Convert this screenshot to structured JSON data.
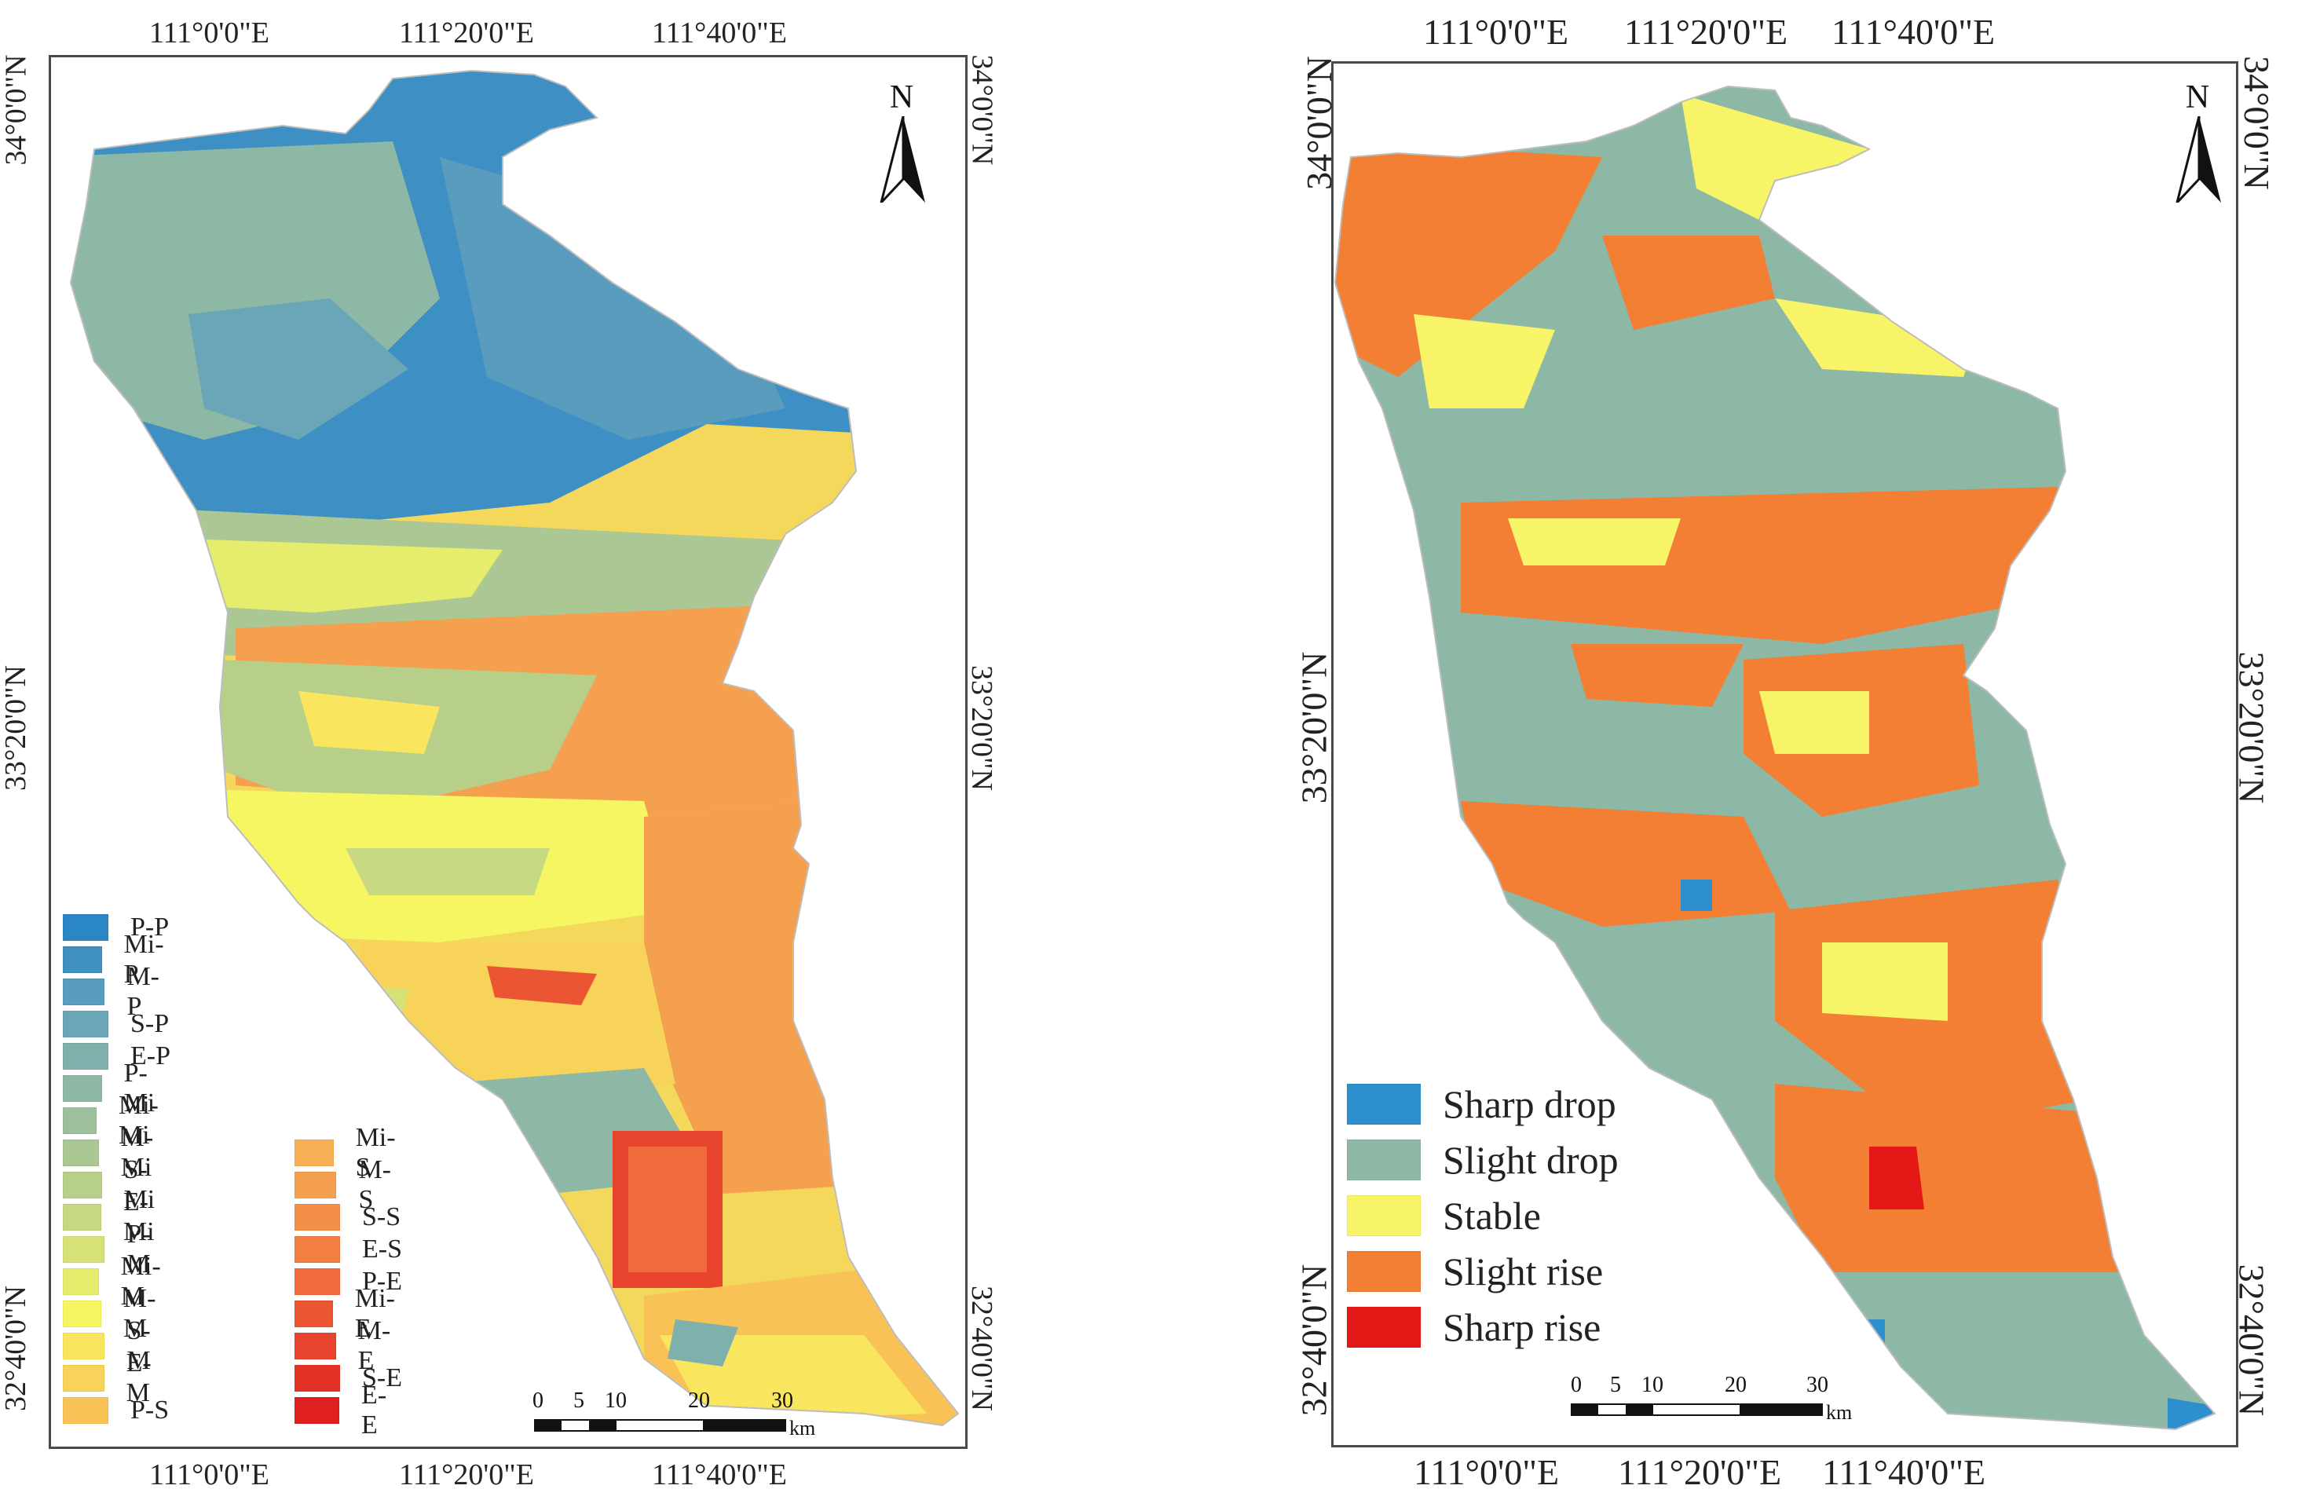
{
  "left_map": {
    "top_ticks": [
      "111°0'0\"E",
      "111°20'0\"E",
      "111°40'0\"E"
    ],
    "bottom_ticks": [
      "111°0'0\"E",
      "111°20'0\"E",
      "111°40'0\"E"
    ],
    "left_ticks": [
      "34°0'0\"N",
      "33°20'0\"N",
      "32°40'0\"N"
    ],
    "right_ticks": [
      "34°0'0\"N",
      "33°20'0\"N",
      "32°40'0\"N"
    ],
    "north_label": "N",
    "scale_numbers": [
      "0",
      "5",
      "10",
      "20",
      "30"
    ],
    "scale_unit": "km",
    "legend_col1": [
      {
        "label": "P-P",
        "color": "#2b86c5"
      },
      {
        "label": "Mi-P",
        "color": "#3f8fc0"
      },
      {
        "label": "M-P",
        "color": "#5a9cbd"
      },
      {
        "label": "S-P",
        "color": "#6aa5b8"
      },
      {
        "label": "E-P",
        "color": "#7fb0ab"
      },
      {
        "label": "P-Mi",
        "color": "#8eb8a6"
      },
      {
        "label": "Mi-Mi",
        "color": "#9dbf9c"
      },
      {
        "label": "M-Mi",
        "color": "#aac794"
      },
      {
        "label": "S-Mi",
        "color": "#b8cf8a"
      },
      {
        "label": "E-Mi",
        "color": "#c6d881"
      },
      {
        "label": "P-M",
        "color": "#d6e277"
      },
      {
        "label": "Mi-M",
        "color": "#e6ec6c"
      },
      {
        "label": "M-M",
        "color": "#f6f662"
      },
      {
        "label": "S-M",
        "color": "#f9e65e"
      },
      {
        "label": "E-M",
        "color": "#f8d35a"
      },
      {
        "label": "P-S",
        "color": "#f8c257"
      }
    ],
    "legend_col2": [
      {
        "label": "Mi-S",
        "color": "#f6b053"
      },
      {
        "label": "M-S",
        "color": "#f5a04e"
      },
      {
        "label": "S-S",
        "color": "#f48f48"
      },
      {
        "label": "E-S",
        "color": "#f27e42"
      },
      {
        "label": "P-E",
        "color": "#f06a3b"
      },
      {
        "label": "Mi-E",
        "color": "#ec5533"
      },
      {
        "label": "M-E",
        "color": "#e8432c"
      },
      {
        "label": "S-E",
        "color": "#e43126"
      },
      {
        "label": "E-E",
        "color": "#e01f1f"
      }
    ]
  },
  "right_map": {
    "top_ticks": [
      "111°0'0\"E",
      "111°20'0\"E",
      "111°40'0\"E"
    ],
    "bottom_ticks": [
      "111°0'0\"E",
      "111°20'0\"E",
      "111°40'0\"E"
    ],
    "left_ticks": [
      "34°0'0\"N",
      "33°20'0\"N",
      "32°40'0\"N"
    ],
    "right_ticks": [
      "34°0'0\"N",
      "33°20'0\"N",
      "32°40'0\"N"
    ],
    "north_label": "N",
    "scale_numbers": [
      "0",
      "5",
      "10",
      "20",
      "30"
    ],
    "scale_unit": "km",
    "legend": [
      {
        "label": "Sharp drop",
        "color": "#2e8fcf"
      },
      {
        "label": "Slight drop",
        "color": "#8db8a5"
      },
      {
        "label": "Stable",
        "color": "#f7f567"
      },
      {
        "label": "Slight rise",
        "color": "#f27f33"
      },
      {
        "label": "Sharp rise",
        "color": "#e51818"
      }
    ]
  }
}
